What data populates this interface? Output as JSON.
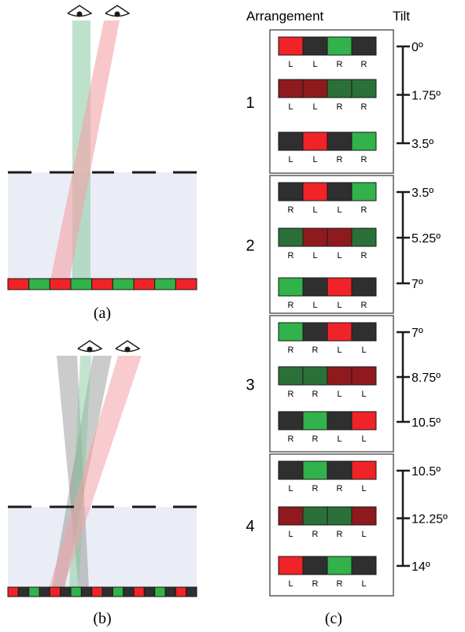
{
  "captions": {
    "a": "(a)",
    "b": "(b)",
    "c": "(c)"
  },
  "headers": {
    "arrangement": "Arrangement",
    "tilt": "Tilt"
  },
  "colors": {
    "bright_red": "#ef2328",
    "dark_red": "#8e1a1e",
    "bright_green": "#31b24a",
    "dark_green": "#2a7038",
    "gray": "#2f2f2f",
    "panel_fill": "#eaedf5",
    "green_beam": "#86c9a0",
    "red_beam": "#f3a2a6",
    "gray_beam": "#8c8c8c"
  },
  "panel_a": {
    "strip": [
      "R",
      "G",
      "R",
      "G",
      "R",
      "G",
      "R",
      "G",
      "R"
    ]
  },
  "panel_b": {
    "strip": [
      "R",
      "K",
      "G",
      "K",
      "R",
      "K",
      "G",
      "K",
      "R",
      "K",
      "G",
      "K",
      "R",
      "K",
      "G",
      "K",
      "R",
      "K"
    ]
  },
  "groups": [
    {
      "label": "1",
      "rows": [
        {
          "cells": [
            "R",
            "K",
            "G",
            "K"
          ],
          "letters": [
            "L",
            "L",
            "R",
            "R"
          ]
        },
        {
          "cells": [
            "r",
            "r",
            "g",
            "g"
          ],
          "letters": [
            "L",
            "L",
            "R",
            "R"
          ]
        },
        {
          "cells": [
            "K",
            "R",
            "K",
            "G"
          ],
          "letters": [
            "L",
            "L",
            "R",
            "R"
          ]
        }
      ],
      "ticks": [
        "0º",
        "1.75º",
        "3.5º"
      ]
    },
    {
      "label": "2",
      "rows": [
        {
          "cells": [
            "K",
            "R",
            "K",
            "G"
          ],
          "letters": [
            "R",
            "L",
            "L",
            "R"
          ]
        },
        {
          "cells": [
            "g",
            "r",
            "r",
            "g"
          ],
          "letters": [
            "R",
            "L",
            "L",
            "R"
          ]
        },
        {
          "cells": [
            "G",
            "K",
            "R",
            "K"
          ],
          "letters": [
            "R",
            "L",
            "L",
            "R"
          ]
        }
      ],
      "ticks": [
        "3.5º",
        "5.25º",
        "7º"
      ]
    },
    {
      "label": "3",
      "rows": [
        {
          "cells": [
            "G",
            "K",
            "R",
            "K"
          ],
          "letters": [
            "R",
            "R",
            "L",
            "L"
          ]
        },
        {
          "cells": [
            "g",
            "g",
            "r",
            "r"
          ],
          "letters": [
            "R",
            "R",
            "L",
            "L"
          ]
        },
        {
          "cells": [
            "K",
            "G",
            "K",
            "R"
          ],
          "letters": [
            "R",
            "R",
            "L",
            "L"
          ]
        }
      ],
      "ticks": [
        "7º",
        "8.75º",
        "10.5º"
      ]
    },
    {
      "label": "4",
      "rows": [
        {
          "cells": [
            "K",
            "G",
            "K",
            "R"
          ],
          "letters": [
            "L",
            "R",
            "R",
            "L"
          ]
        },
        {
          "cells": [
            "r",
            "g",
            "g",
            "r"
          ],
          "letters": [
            "L",
            "R",
            "R",
            "L"
          ]
        },
        {
          "cells": [
            "R",
            "K",
            "G",
            "K"
          ],
          "letters": [
            "L",
            "R",
            "R",
            "L"
          ]
        }
      ],
      "ticks": [
        "10.5º",
        "12.25º",
        "14º"
      ]
    }
  ]
}
